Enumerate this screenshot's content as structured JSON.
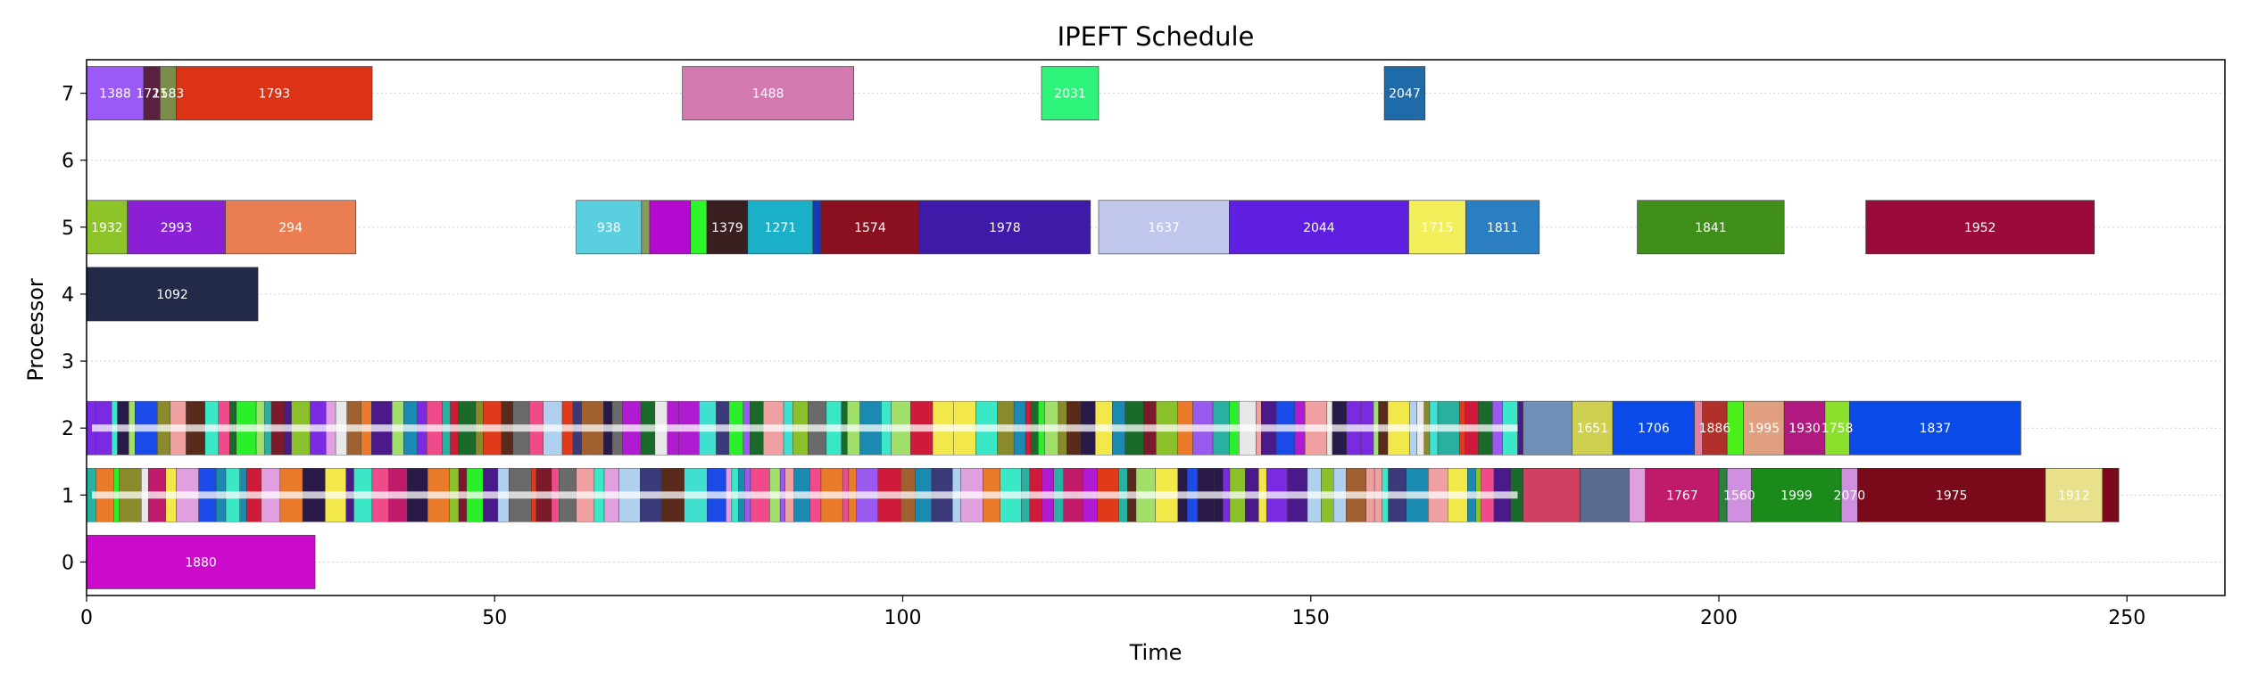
{
  "chart_data": {
    "type": "gantt",
    "title": "IPEFT Schedule",
    "xlabel": "Time",
    "ylabel": "Processor",
    "xlim": [
      0,
      262
    ],
    "ylim": [
      -0.5,
      7.5
    ],
    "xticks": [
      0,
      50,
      100,
      150,
      200,
      250
    ],
    "yticks": [
      0,
      1,
      2,
      3,
      4,
      5,
      6,
      7
    ],
    "grid": "horizontal dotted",
    "tasks": [
      {
        "processor": 7,
        "start": 0.0,
        "end": 7.0,
        "label": "1388",
        "color": "#9b59f5"
      },
      {
        "processor": 7,
        "start": 7.0,
        "end": 9.0,
        "label": "1721",
        "color": "#5a2040"
      },
      {
        "processor": 7,
        "start": 9.0,
        "end": 11.0,
        "label": "1583",
        "color": "#7a8c4a"
      },
      {
        "processor": 7,
        "start": 11.0,
        "end": 35.0,
        "label": "1793",
        "color": "#dc3215"
      },
      {
        "processor": 7,
        "start": 73.0,
        "end": 94.0,
        "label": "1488",
        "color": "#d478b0"
      },
      {
        "processor": 7,
        "start": 117.0,
        "end": 124.0,
        "label": "2031",
        "color": "#2ef57a"
      },
      {
        "processor": 7,
        "start": 159.0,
        "end": 164.0,
        "label": "2047",
        "color": "#1f6aa8"
      },
      {
        "processor": 5,
        "start": 0.0,
        "end": 5.0,
        "label": "1932",
        "color": "#8cc42a"
      },
      {
        "processor": 5,
        "start": 5.0,
        "end": 17.0,
        "label": "2993",
        "color": "#8a1fd6"
      },
      {
        "processor": 5,
        "start": 17.0,
        "end": 33.0,
        "label": "294",
        "color": "#ea7e52"
      },
      {
        "processor": 5,
        "start": 60.0,
        "end": 68.0,
        "label": "938",
        "color": "#5acfe0"
      },
      {
        "processor": 5,
        "start": 68.0,
        "end": 69.0,
        "label": "",
        "color": "#8a9a5b"
      },
      {
        "processor": 5,
        "start": 69.0,
        "end": 74.0,
        "label": "",
        "color": "#b40ad0"
      },
      {
        "processor": 5,
        "start": 74.0,
        "end": 76.0,
        "label": "",
        "color": "#2ef52a"
      },
      {
        "processor": 5,
        "start": 76.0,
        "end": 81.0,
        "label": "1379",
        "color": "#3a1f20"
      },
      {
        "processor": 5,
        "start": 81.0,
        "end": 89.0,
        "label": "1271",
        "color": "#1ab0c8"
      },
      {
        "processor": 5,
        "start": 89.0,
        "end": 90.0,
        "label": "",
        "color": "#1a3ab0"
      },
      {
        "processor": 5,
        "start": 90.0,
        "end": 102.0,
        "label": "1574",
        "color": "#8a1020"
      },
      {
        "processor": 5,
        "start": 102.0,
        "end": 123.0,
        "label": "1978",
        "color": "#3f1aa8"
      },
      {
        "processor": 5,
        "start": 124.0,
        "end": 140.0,
        "label": "1637",
        "color": "#c0c6ec"
      },
      {
        "processor": 5,
        "start": 140.0,
        "end": 162.0,
        "label": "2044",
        "color": "#5f1fe0"
      },
      {
        "processor": 5,
        "start": 162.0,
        "end": 169.0,
        "label": "1715",
        "color": "#f2ef5a"
      },
      {
        "processor": 5,
        "start": 169.0,
        "end": 178.0,
        "label": "1811",
        "color": "#2b7fc0"
      },
      {
        "processor": 5,
        "start": 190.0,
        "end": 208.0,
        "label": "1841",
        "color": "#3f8f1a"
      },
      {
        "processor": 5,
        "start": 218.0,
        "end": 246.0,
        "label": "1952",
        "color": "#9a0a3a"
      },
      {
        "processor": 4,
        "start": 0.0,
        "end": 21.0,
        "label": "1092",
        "color": "#222a48"
      },
      {
        "processor": 2,
        "start": 176.0,
        "end": 182.0,
        "label": "",
        "color": "#7090b8"
      },
      {
        "processor": 2,
        "start": 182.0,
        "end": 187.0,
        "label": "1651",
        "color": "#d0d050"
      },
      {
        "processor": 2,
        "start": 187.0,
        "end": 197.0,
        "label": "1706",
        "color": "#0a4ae8"
      },
      {
        "processor": 2,
        "start": 197.0,
        "end": 198.0,
        "label": "",
        "color": "#e080a0"
      },
      {
        "processor": 2,
        "start": 198.0,
        "end": 201.0,
        "label": "1886",
        "color": "#b0302a"
      },
      {
        "processor": 2,
        "start": 201.0,
        "end": 203.0,
        "label": "",
        "color": "#4af01a"
      },
      {
        "processor": 2,
        "start": 203.0,
        "end": 208.0,
        "label": "1995",
        "color": "#e0a080"
      },
      {
        "processor": 2,
        "start": 208.0,
        "end": 213.0,
        "label": "1930",
        "color": "#b01a80"
      },
      {
        "processor": 2,
        "start": 213.0,
        "end": 216.0,
        "label": "1758",
        "color": "#8ae02a"
      },
      {
        "processor": 2,
        "start": 216.0,
        "end": 237.0,
        "label": "1837",
        "color": "#0a4ae8"
      },
      {
        "processor": 1,
        "start": 176.0,
        "end": 183.0,
        "label": "",
        "color": "#d04060"
      },
      {
        "processor": 1,
        "start": 183.0,
        "end": 189.0,
        "label": "",
        "color": "#5a6a90"
      },
      {
        "processor": 1,
        "start": 189.0,
        "end": 191.0,
        "label": "",
        "color": "#e0a0e0"
      },
      {
        "processor": 1,
        "start": 191.0,
        "end": 200.0,
        "label": "1767",
        "color": "#c01a6a"
      },
      {
        "processor": 1,
        "start": 200.0,
        "end": 201.0,
        "label": "",
        "color": "#2a8040"
      },
      {
        "processor": 1,
        "start": 201.0,
        "end": 204.0,
        "label": "1560",
        "color": "#d090e0"
      },
      {
        "processor": 1,
        "start": 204.0,
        "end": 215.0,
        "label": "1999",
        "color": "#1a8a1a"
      },
      {
        "processor": 1,
        "start": 215.0,
        "end": 217.0,
        "label": "2070",
        "color": "#d090e0"
      },
      {
        "processor": 1,
        "start": 217.0,
        "end": 240.0,
        "label": "1975",
        "color": "#7a0a1a"
      },
      {
        "processor": 1,
        "start": 240.0,
        "end": 247.0,
        "label": "1912",
        "color": "#e8e08a"
      },
      {
        "processor": 1,
        "start": 247.0,
        "end": 249.0,
        "label": "",
        "color": "#7a0a1a"
      },
      {
        "processor": 0,
        "start": 0.0,
        "end": 28.0,
        "label": "1880",
        "color": "#cc0acc"
      }
    ],
    "dense_rows": [
      {
        "processor": 2,
        "start": 0.0,
        "end": 176.0,
        "seed": 7
      },
      {
        "processor": 1,
        "start": 0.0,
        "end": 176.0,
        "seed": 13
      }
    ]
  }
}
